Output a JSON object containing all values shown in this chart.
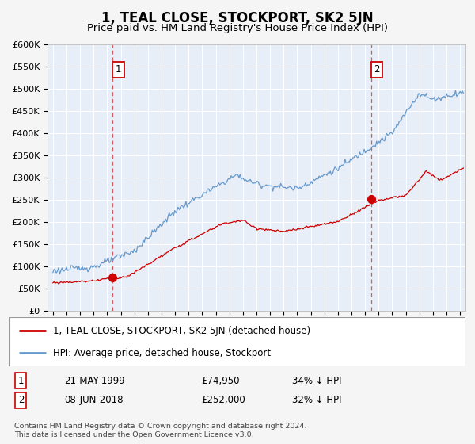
{
  "title": "1, TEAL CLOSE, STOCKPORT, SK2 5JN",
  "subtitle": "Price paid vs. HM Land Registry's House Price Index (HPI)",
  "ylim": [
    0,
    600000
  ],
  "yticks": [
    0,
    50000,
    100000,
    150000,
    200000,
    250000,
    300000,
    350000,
    400000,
    450000,
    500000,
    550000,
    600000
  ],
  "ytick_labels": [
    "£0",
    "£50K",
    "£100K",
    "£150K",
    "£200K",
    "£250K",
    "£300K",
    "£350K",
    "£400K",
    "£450K",
    "£500K",
    "£550K",
    "£600K"
  ],
  "xlim_start": 1994.6,
  "xlim_end": 2025.4,
  "sale1_x": 1999.386,
  "sale1_y": 74950,
  "sale1_label": "1",
  "sale1_date": "21-MAY-1999",
  "sale1_price": "£74,950",
  "sale1_hpi": "34% ↓ HPI",
  "sale2_x": 2018.436,
  "sale2_y": 252000,
  "sale2_label": "2",
  "sale2_date": "08-JUN-2018",
  "sale2_price": "£252,000",
  "sale2_hpi": "32% ↓ HPI",
  "red_line_color": "#cc0000",
  "blue_line_color": "#6699cc",
  "plot_bg_color": "#e8eef8",
  "fig_bg_color": "#f5f5f5",
  "grid_color": "#ffffff",
  "dashed_line_color": "#cc4444",
  "legend_line1": "1, TEAL CLOSE, STOCKPORT, SK2 5JN (detached house)",
  "legend_line2": "HPI: Average price, detached house, Stockport",
  "footnote": "Contains HM Land Registry data © Crown copyright and database right 2024.\nThis data is licensed under the Open Government Licence v3.0.",
  "title_fontsize": 12,
  "subtitle_fontsize": 9.5,
  "tick_fontsize": 8,
  "legend_fontsize": 8.5
}
